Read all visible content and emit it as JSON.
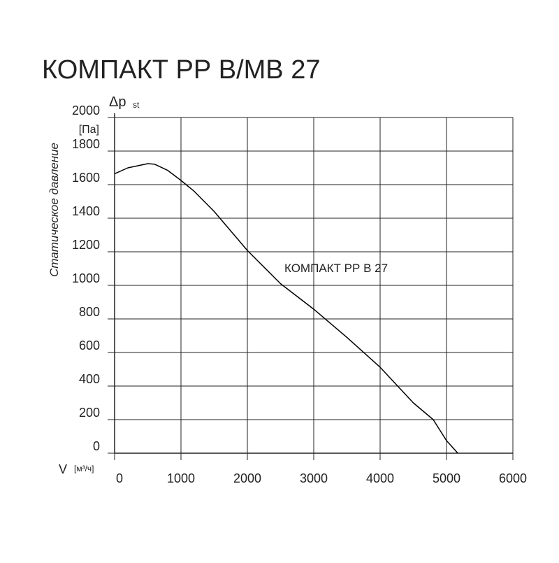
{
  "chart_data": {
    "type": "line",
    "title": "КОМПАКТ РР В/МВ 27",
    "y_symbol": "Δp",
    "y_symbol_sub": "st",
    "y_unit": "[Па]",
    "y_label": "Статическое давление",
    "x_symbol": "V",
    "x_unit": "[м³/ч]",
    "series": [
      {
        "name": "КОМПАКТ РР В 27",
        "color": "#000000",
        "x": [
          0,
          200,
          500,
          600,
          800,
          1000,
          1200,
          1500,
          2000,
          2500,
          3000,
          3500,
          4000,
          4500,
          4800,
          5000,
          5170
        ],
        "values": [
          1665,
          1700,
          1725,
          1722,
          1685,
          1625,
          1560,
          1440,
          1208,
          1010,
          858,
          690,
          512,
          300,
          200,
          75,
          0
        ]
      }
    ],
    "xlim": [
      0,
      6000
    ],
    "xticks": [
      0,
      1000,
      2000,
      3000,
      4000,
      5000,
      6000
    ],
    "ylim": [
      0,
      2000
    ],
    "yticks": [
      0,
      200,
      400,
      600,
      800,
      1000,
      1200,
      1400,
      1600,
      1800,
      2000
    ],
    "grid": true
  }
}
